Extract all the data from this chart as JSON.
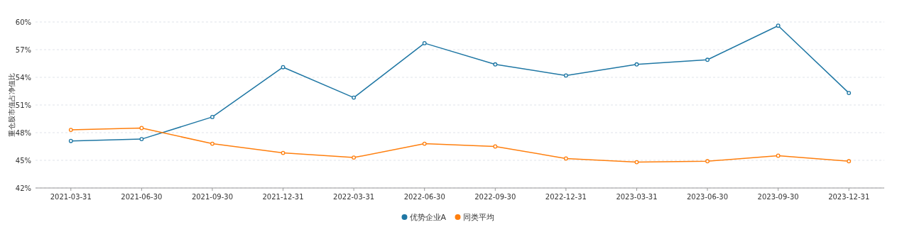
{
  "chart_data": {
    "type": "line",
    "ylabel": "重仓股市值占净值比",
    "categories": [
      "2021-03-31",
      "2021-06-30",
      "2021-09-30",
      "2021-12-31",
      "2022-03-31",
      "2022-06-30",
      "2022-09-30",
      "2022-12-31",
      "2023-03-31",
      "2023-06-30",
      "2023-09-30",
      "2023-12-31"
    ],
    "series": [
      {
        "name": "优势企业A",
        "color": "#1f77a4",
        "values": [
          47.1,
          47.3,
          49.7,
          55.1,
          51.8,
          57.7,
          55.4,
          54.2,
          55.4,
          55.9,
          59.6,
          52.3
        ]
      },
      {
        "name": "同类平均",
        "color": "#ff7f0e",
        "values": [
          48.3,
          48.5,
          46.8,
          45.8,
          45.3,
          46.8,
          46.5,
          45.2,
          44.8,
          44.9,
          45.5,
          44.9
        ]
      }
    ],
    "ylim": [
      42,
      60
    ],
    "yticks": [
      {
        "value": 42,
        "label": "42%"
      },
      {
        "value": 45,
        "label": "45%"
      },
      {
        "value": 48,
        "label": "48%"
      },
      {
        "value": 51,
        "label": "51%"
      },
      {
        "value": 54,
        "label": "54%"
      },
      {
        "value": 57,
        "label": "57%"
      },
      {
        "value": 60,
        "label": "60%"
      }
    ],
    "grid": "y",
    "legend": "bottom",
    "marker": "circle",
    "line_style": "solid"
  }
}
